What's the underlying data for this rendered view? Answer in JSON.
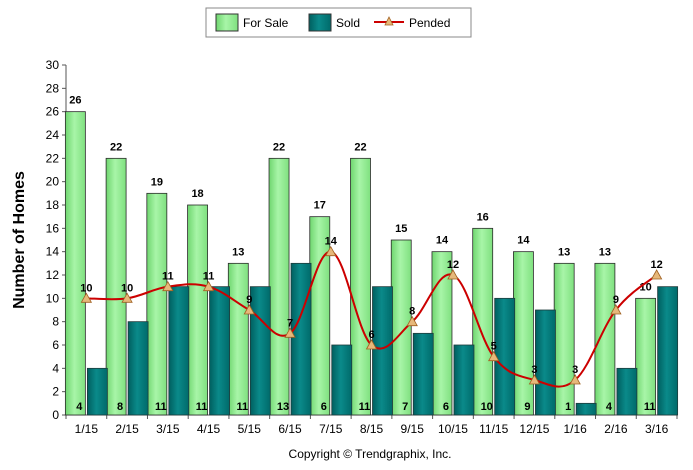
{
  "chart_data": {
    "type": "bar",
    "categories": [
      "1/15",
      "2/15",
      "3/15",
      "4/15",
      "5/15",
      "6/15",
      "7/15",
      "8/15",
      "9/15",
      "10/15",
      "11/15",
      "12/15",
      "1/16",
      "2/16",
      "3/16"
    ],
    "series": [
      {
        "name": "For Sale",
        "type": "bar",
        "color": "#90ee90",
        "values": [
          26,
          22,
          19,
          18,
          13,
          22,
          17,
          22,
          15,
          14,
          16,
          14,
          13,
          13,
          10
        ]
      },
      {
        "name": "Sold",
        "type": "bar",
        "color": "#007b7b",
        "values": [
          4,
          8,
          11,
          11,
          11,
          13,
          6,
          11,
          7,
          6,
          10,
          9,
          1,
          4,
          11
        ]
      },
      {
        "name": "Pended",
        "type": "line",
        "color": "#cc0000",
        "marker_color": "#e6b87a",
        "values": [
          10,
          10,
          11,
          11,
          9,
          7,
          14,
          6,
          8,
          12,
          5,
          3,
          3,
          9,
          12
        ]
      }
    ],
    "ylabel": "Number of Homes",
    "ylim": [
      0,
      30
    ],
    "ytick_step": 2,
    "legend_position": "top-center",
    "grid": false
  },
  "copyright": "Copyright © Trendgraphix, Inc."
}
